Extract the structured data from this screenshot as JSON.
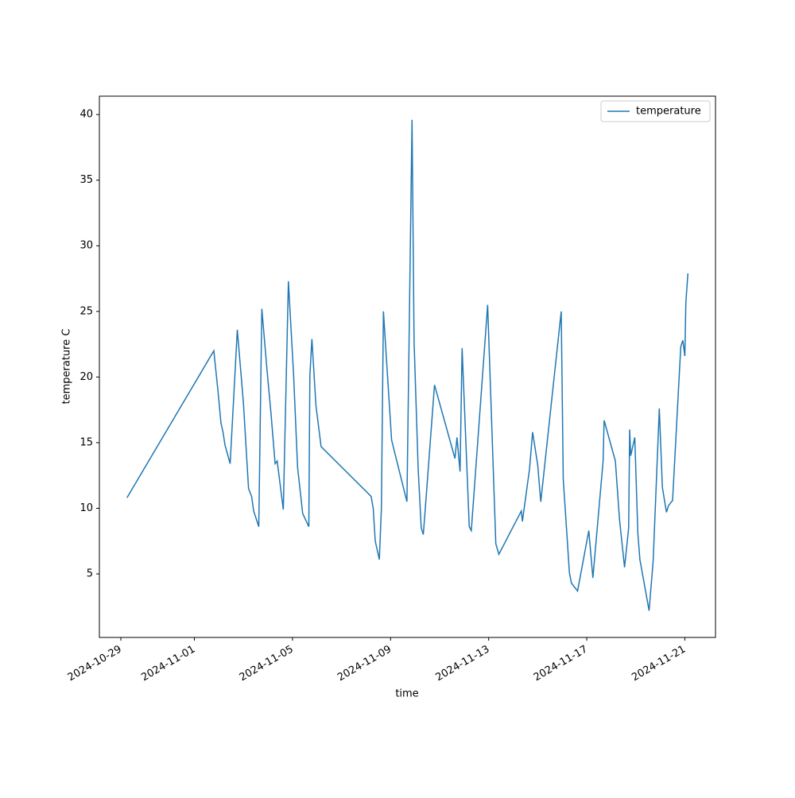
{
  "chart_data": {
    "type": "line",
    "x_label": "time",
    "y_label": "temperature C",
    "x": [
      "2024-10-29T06:00",
      "2024-11-01T19:00",
      "2024-11-01T23:00",
      "2024-11-02T02:00",
      "2024-11-02T04:00",
      "2024-11-02T06:00",
      "2024-11-02T11:00",
      "2024-11-02T18:00",
      "2024-11-03T00:00",
      "2024-11-03T05:00",
      "2024-11-03T08:00",
      "2024-11-03T10:00",
      "2024-11-03T15:00",
      "2024-11-03T18:00",
      "2024-11-03T23:00",
      "2024-11-04T03:00",
      "2024-11-04T07:00",
      "2024-11-04T09:00",
      "2024-11-04T10:00",
      "2024-11-04T15:00",
      "2024-11-04T20:00",
      "2024-11-05T01:00",
      "2024-11-05T05:00",
      "2024-11-05T10:00",
      "2024-11-05T16:00",
      "2024-11-05T17:00",
      "2024-11-05T19:00",
      "2024-11-05T23:00",
      "2024-11-06T04:00",
      "2024-11-08T05:00",
      "2024-11-08T07:00",
      "2024-11-08T09:00",
      "2024-11-08T13:00",
      "2024-11-08T15:00",
      "2024-11-08T17:00",
      "2024-11-09T01:00",
      "2024-11-09T16:00",
      "2024-11-09T21:00",
      "2024-11-09T23:00",
      "2024-11-10T03:00",
      "2024-11-10T06:00",
      "2024-11-10T08:00",
      "2024-11-10T10:00",
      "2024-11-10T19:00",
      "2024-11-11T15:00",
      "2024-11-11T17:00",
      "2024-11-11T20:00",
      "2024-11-11T22:00",
      "2024-11-12T05:00",
      "2024-11-12T07:00",
      "2024-11-12T23:00",
      "2024-11-13T07:00",
      "2024-11-13T10:00",
      "2024-11-14T08:00",
      "2024-11-14T09:00",
      "2024-11-14T16:00",
      "2024-11-14T19:00",
      "2024-11-15T00:00",
      "2024-11-15T03:00",
      "2024-11-15T23:00",
      "2024-11-16T01:00",
      "2024-11-16T05:00",
      "2024-11-16T07:00",
      "2024-11-16T09:00",
      "2024-11-16T15:00",
      "2024-11-17T02:00",
      "2024-11-17T06:00",
      "2024-11-17T16:00",
      "2024-11-17T17:00",
      "2024-11-18T04:00",
      "2024-11-18T08:00",
      "2024-11-18T13:00",
      "2024-11-18T17:00",
      "2024-11-18T18:00",
      "2024-11-18T19:00",
      "2024-11-18T23:00",
      "2024-11-19T02:00",
      "2024-11-19T04:00",
      "2024-11-19T13:00",
      "2024-11-19T17:00",
      "2024-11-19T23:00",
      "2024-11-20T02:00",
      "2024-11-20T06:00",
      "2024-11-20T08:00",
      "2024-11-20T12:00",
      "2024-11-20T20:00",
      "2024-11-20T22:00",
      "2024-11-21T00:00",
      "2024-11-21T01:00",
      "2024-11-21T03:00"
    ],
    "series": [
      {
        "name": "temperature",
        "color": "#1f77b4",
        "values": [
          10.8,
          22.0,
          19.0,
          16.5,
          15.8,
          14.8,
          13.4,
          23.6,
          18.0,
          11.5,
          10.9,
          9.8,
          8.6,
          25.2,
          20.6,
          17.2,
          13.4,
          13.6,
          13.0,
          9.9,
          27.3,
          20.3,
          13.1,
          9.6,
          8.6,
          20.1,
          22.9,
          17.8,
          14.7,
          10.9,
          10.0,
          7.5,
          6.1,
          10.0,
          25.0,
          15.2,
          10.5,
          39.6,
          22.7,
          13.0,
          8.5,
          8.0,
          10.0,
          19.4,
          13.8,
          15.4,
          12.8,
          22.2,
          8.6,
          8.3,
          25.5,
          7.3,
          6.5,
          9.8,
          9.0,
          13.0,
          15.8,
          13.3,
          10.5,
          25.0,
          12.2,
          7.5,
          5.1,
          4.3,
          3.7,
          8.3,
          4.7,
          13.6,
          16.7,
          13.6,
          9.2,
          5.5,
          8.5,
          16.0,
          14.0,
          15.4,
          8.1,
          6.1,
          2.2,
          6.0,
          17.6,
          11.6,
          9.7,
          10.2,
          10.6,
          22.3,
          22.8,
          21.6,
          25.7,
          27.9
        ]
      }
    ],
    "xlim": [
      "2024-10-28T03:00",
      "2024-11-22T06:00"
    ],
    "xticks": [
      "2024-10-29",
      "2024-11-01",
      "2024-11-05",
      "2024-11-09",
      "2024-11-13",
      "2024-11-17",
      "2024-11-21"
    ],
    "ylim": [
      0.16,
      41.4
    ],
    "yticks": [
      5,
      10,
      15,
      20,
      25,
      30,
      35,
      40
    ],
    "grid": false,
    "legend": "upper right"
  }
}
